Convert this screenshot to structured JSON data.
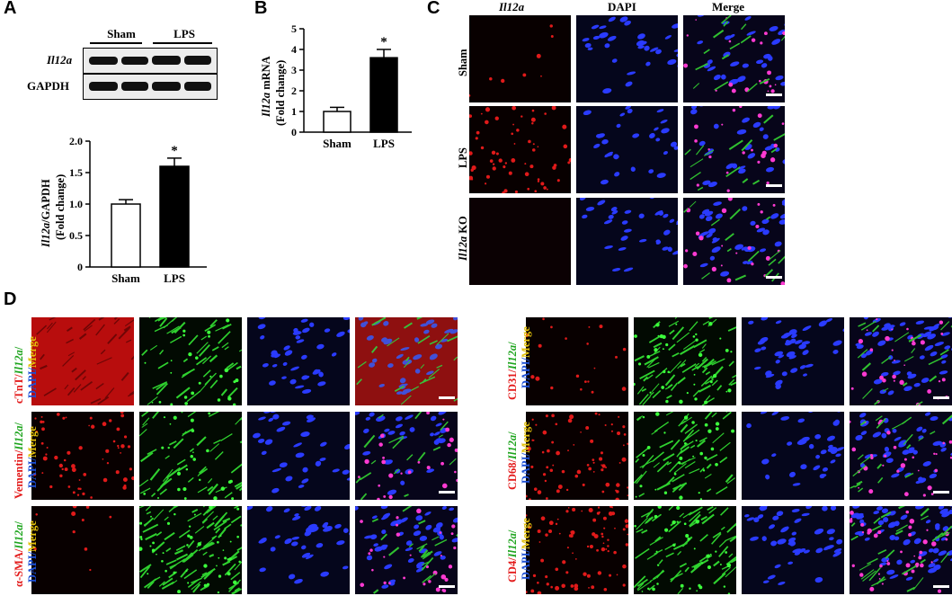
{
  "panels": {
    "A": "A",
    "B": "B",
    "C": "C",
    "D": "D"
  },
  "panelA": {
    "blot": {
      "group_labels": [
        "Sham",
        "LPS"
      ],
      "rows": [
        "Il12a",
        "GAPDH"
      ]
    },
    "chart_data": {
      "type": "bar",
      "categories": [
        "Sham",
        "LPS"
      ],
      "values": [
        1.0,
        1.6
      ],
      "errors": [
        0.07,
        0.13
      ],
      "significance": [
        "",
        "*"
      ],
      "ylabel_gene": "Il12a",
      "ylabel_rest": "/GAPDH",
      "ylabel2": "(Fold change)",
      "ylim": [
        0,
        2.0
      ],
      "yticks": [
        "0",
        "0.5",
        "1.0",
        "1.5",
        "2.0"
      ],
      "colors": [
        "#ffffff",
        "#000000"
      ]
    }
  },
  "panelB": {
    "chart_data": {
      "type": "bar",
      "categories": [
        "Sham",
        "LPS"
      ],
      "values": [
        1.0,
        3.6
      ],
      "errors": [
        0.2,
        0.4
      ],
      "significance": [
        "",
        "*"
      ],
      "ylabel_gene": "Il12a",
      "ylabel_rest": " mRNA",
      "ylabel2": "(Fold change)",
      "ylim": [
        0,
        5
      ],
      "yticks": [
        "0",
        "1",
        "2",
        "3",
        "4",
        "5"
      ],
      "colors": [
        "#ffffff",
        "#000000"
      ]
    }
  },
  "panelC": {
    "columns": [
      "Il12a",
      "DAPI",
      "Merge"
    ],
    "rows": [
      "Sham",
      "LPS",
      "Il12a KO"
    ]
  },
  "panelD": {
    "left_rows": [
      {
        "marker": "cTnT",
        "sep": "/",
        "gene": "Il12a",
        "slash": "/",
        "dapi": "DAPI",
        "slash2": "/",
        "merge": "Merge"
      },
      {
        "marker": "Vementin",
        "sep": "/",
        "gene": "Il12a",
        "slash": "/",
        "dapi": "DAPI",
        "slash2": "/",
        "merge": "Merge"
      },
      {
        "marker": "α-SMA",
        "sep": "/",
        "gene": "Il12a",
        "slash": "/",
        "dapi": "DAPI",
        "slash2": "/",
        "merge": "Merge"
      }
    ],
    "right_rows": [
      {
        "marker": "CD31",
        "sep": "/",
        "gene": "Il12a",
        "slash": "/",
        "dapi": "DAPI",
        "slash2": "/",
        "merge": "Merge"
      },
      {
        "marker": "CD68",
        "sep": "/",
        "gene": "Il12a",
        "slash": "/",
        "dapi": "DAPI",
        "slash2": "/",
        "merge": "Merge"
      },
      {
        "marker": "CD4",
        "sep": "/",
        "gene": "Il12a",
        "slash": "/",
        "dapi": "DAPI",
        "slash2": "/",
        "merge": "Merge"
      }
    ]
  }
}
